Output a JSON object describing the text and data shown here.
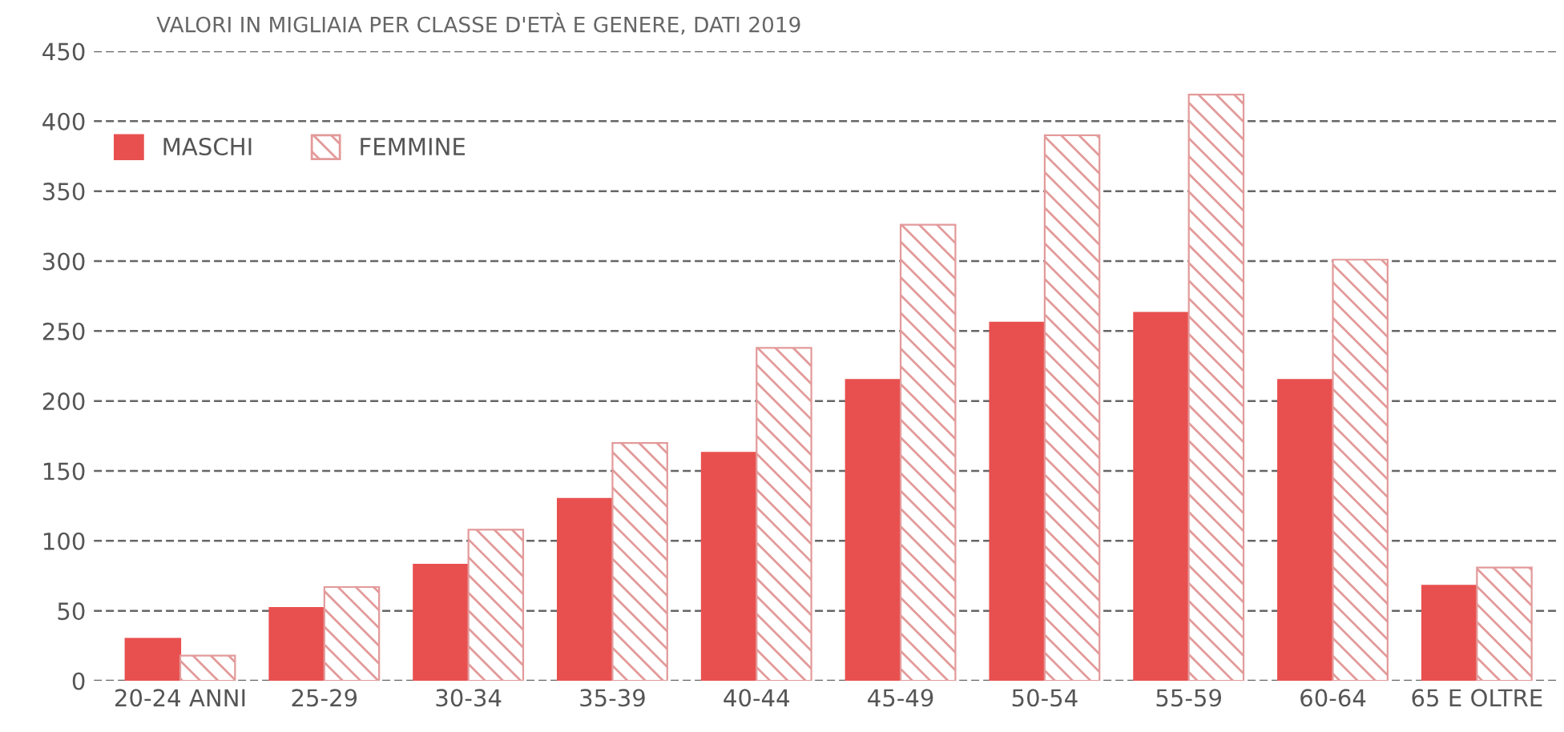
{
  "chart_data": {
    "type": "bar",
    "title": "VALORI IN MIGLIAIA PER CLASSE D'ETÀ E GENERE, DATI 2019",
    "categories": [
      "20-24 ANNI",
      "25-29",
      "30-34",
      "35-39",
      "40-44",
      "45-49",
      "50-54",
      "55-59",
      "60-64",
      "65 E OLTRE"
    ],
    "series": [
      {
        "name": "MASCHI",
        "color": "#e8504f",
        "values": [
          30,
          52,
          83,
          130,
          163,
          215,
          256,
          263,
          215,
          68
        ]
      },
      {
        "name": "FEMMINE",
        "color": "#e39a9a",
        "values": [
          18,
          67,
          108,
          170,
          238,
          326,
          390,
          419,
          301,
          81
        ]
      }
    ],
    "ylim": [
      0,
      450
    ],
    "yticks": [
      0,
      50,
      100,
      150,
      200,
      250,
      300,
      350,
      400,
      450
    ],
    "grid": "y",
    "legend": "top left"
  }
}
